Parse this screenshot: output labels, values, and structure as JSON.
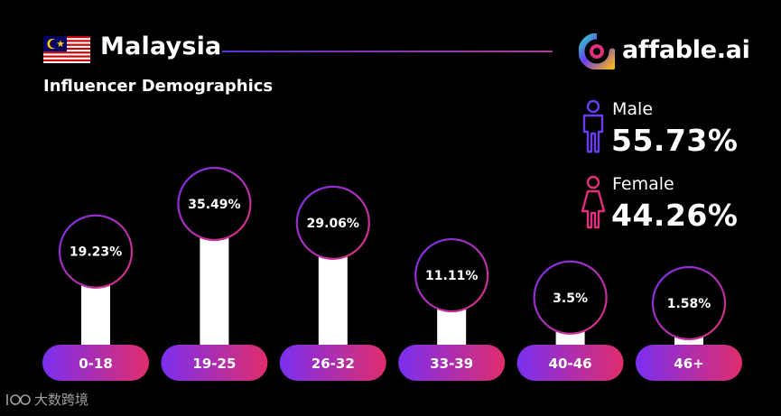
{
  "header": {
    "country": "Malaysia",
    "subtitle": "Influencer Demographics",
    "brand": "affable.ai"
  },
  "gender": {
    "male_label": "Male",
    "male_value": "55.73%",
    "female_label": "Female",
    "female_value": "44.26%"
  },
  "colors": {
    "background": "#000000",
    "male_accent": "#6a3cf0",
    "female_accent": "#e0307a",
    "pill_gradient_start": "#7a2ff0",
    "pill_gradient_end": "#e02d6c",
    "bar": "#ffffff"
  },
  "icons": [
    "malaysia-flag-icon",
    "affable-logo-icon",
    "male-person-icon",
    "female-person-icon",
    "watermark-logo-icon"
  ],
  "watermark": "大数跨境",
  "chart_data": {
    "type": "bar",
    "categories": [
      "0-18",
      "19-25",
      "26-32",
      "33-39",
      "40-46",
      "46+"
    ],
    "values": [
      19.23,
      35.49,
      29.06,
      11.11,
      3.5,
      1.58
    ],
    "labels": [
      "19.23%",
      "35.49%",
      "29.06%",
      "11.11%",
      "3.5%",
      "1.58%"
    ],
    "xlabel": "",
    "ylabel": "",
    "ylim": [
      0,
      40
    ],
    "grid": false,
    "legend": "none"
  }
}
